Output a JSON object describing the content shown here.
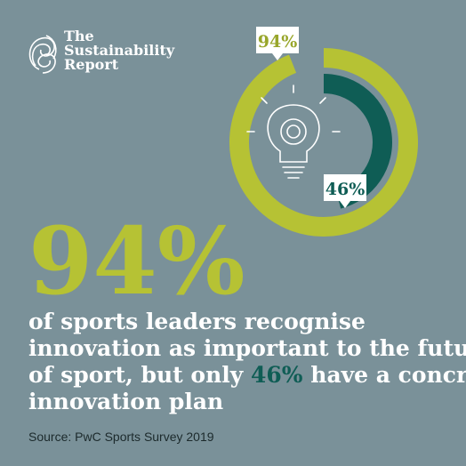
{
  "brand": {
    "lines": [
      "The",
      "Sustainability",
      "Report"
    ]
  },
  "chart_data": {
    "type": "radial",
    "values": [
      94,
      46
    ],
    "value_labels": [
      "94%",
      "46%"
    ],
    "colors": [
      "#b6c234",
      "#0f5d55"
    ],
    "label_colors": [
      "#98a62b",
      "#0f5d55"
    ]
  },
  "headline": {
    "figure": "94%",
    "lines": [
      "of sports leaders recognise",
      "innovation as important to the future",
      "of sport, but only",
      "46%",
      "have a concrete",
      "innovation plan"
    ]
  },
  "source": "Source: PwC Sports Survey 2019"
}
